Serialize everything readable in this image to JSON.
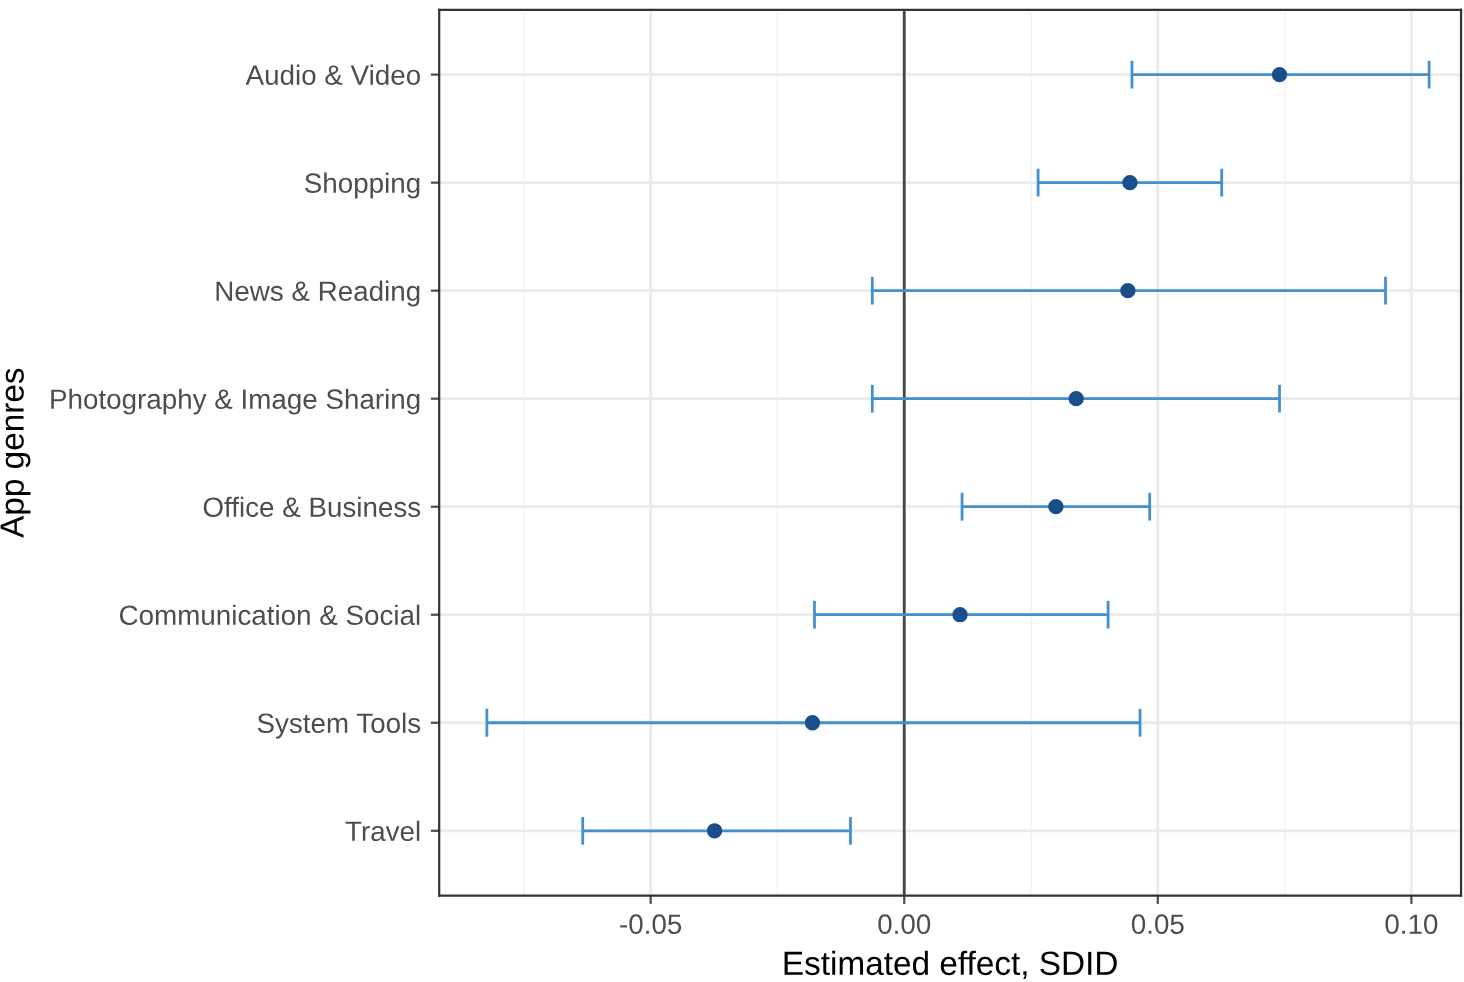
{
  "chart_data": {
    "type": "scatter",
    "orientation": "horizontal",
    "xlabel": "Estimated effect, SDID",
    "ylabel": "App genres",
    "categories": [
      "Audio & Video",
      "Shopping",
      "News & Reading",
      "Photography & Image Sharing",
      "Office & Business",
      "Communication & Social",
      "System Tools",
      "Travel"
    ],
    "values": [
      0.074,
      0.0445,
      0.0441,
      0.0339,
      0.0299,
      0.011,
      -0.0181,
      -0.0374
    ],
    "errors": [
      [
        0.0449,
        0.1035
      ],
      [
        0.0264,
        0.0626
      ],
      [
        -0.0063,
        0.0949
      ],
      [
        -0.0063,
        0.074
      ],
      [
        0.0114,
        0.0484
      ],
      [
        -0.0177,
        0.0402
      ],
      [
        -0.0823,
        0.0465
      ],
      [
        -0.0634,
        -0.0106
      ]
    ],
    "color": "#1a4f8b",
    "xlim": [
      -0.0917,
      0.1098
    ],
    "xticks": [
      {
        "value": -0.05,
        "label": "-0.05"
      },
      {
        "value": 0,
        "label": "0.00"
      },
      {
        "value": 0.05,
        "label": "0.05"
      },
      {
        "value": 0.1,
        "label": "0.10"
      }
    ],
    "ref_lines": [
      {
        "axis": "x",
        "value": 0,
        "color": "#444444"
      }
    ],
    "grid": true,
    "marker": "circle",
    "legend": false
  }
}
